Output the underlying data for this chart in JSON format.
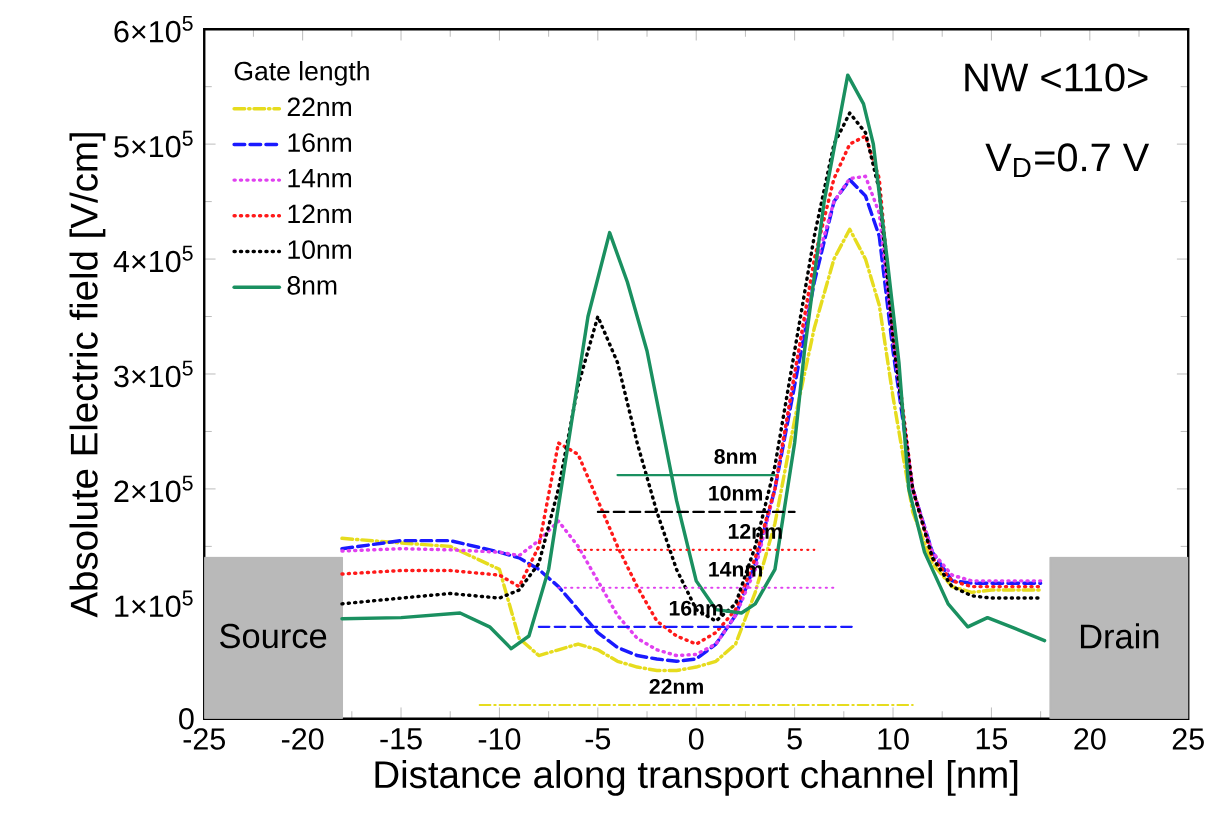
{
  "chart_data": {
    "type": "line",
    "xlabel": "Distance along transport channel [nm]",
    "ylabel": "Absolute Electric field [V/cm]",
    "legend_title": "Gate length",
    "legend": "top left",
    "grid": false,
    "marker": "none",
    "xlim": [
      -25,
      25
    ],
    "xticks": [
      -25,
      -20,
      -15,
      -10,
      -5,
      0,
      5,
      10,
      15,
      20,
      25
    ],
    "ylim": [
      0,
      600000
    ],
    "yticks": [
      0,
      {
        "value": 100000,
        "label": "1×10$^{5}$"
      },
      {
        "value": 200000,
        "label": "2×10$^{5}$"
      },
      {
        "value": 300000,
        "label": "3×10$^{5}$"
      },
      {
        "value": 400000,
        "label": "4×10$^{5}$"
      },
      {
        "value": 500000,
        "label": "5×10$^{5}$"
      },
      {
        "value": 600000,
        "label": "6×10$^{5}$"
      }
    ],
    "annotations": [
      "NW <110>",
      "V$_{D}$=0.7 V",
      "Source",
      "Drain",
      {
        "text": "8nm",
        "x": 2,
        "y": 212000
      },
      {
        "text": "10nm",
        "x": 2,
        "y": 180000
      },
      {
        "text": "12nm",
        "x": 3,
        "y": 147000
      },
      {
        "text": "14nm",
        "x": 2,
        "y": 114000
      },
      {
        "text": "16nm",
        "x": 0,
        "y": 80000
      },
      {
        "text": "22nm",
        "x": -1,
        "y": 12000
      }
    ],
    "series": [
      {
        "name": "22nm",
        "color": "#e6dc1e",
        "line_style": "dashdot",
        "x": [
          -18,
          -15,
          -12.5,
          -10,
          -9,
          -8,
          -7,
          -6,
          -5,
          -4,
          -3,
          -2,
          -1,
          0,
          1,
          2,
          3,
          4,
          5,
          6,
          7,
          7.8,
          8.6,
          9.3,
          10,
          11,
          12,
          13,
          14,
          15,
          17.5
        ],
        "values": [
          157000,
          153000,
          150000,
          130000,
          70000,
          55000,
          60000,
          65000,
          60000,
          50000,
          45000,
          42000,
          42000,
          45000,
          50000,
          65000,
          110000,
          170000,
          260000,
          340000,
          400000,
          426000,
          400000,
          360000,
          280000,
          180000,
          135000,
          115000,
          110000,
          112000,
          112000
        ]
      },
      {
        "name": "16nm",
        "color": "#1a1aff",
        "line_style": "dashed",
        "x": [
          -18,
          -15,
          -12.5,
          -10,
          -9,
          -8,
          -7,
          -6,
          -5,
          -4,
          -3,
          -2,
          -1,
          0,
          1,
          2,
          3,
          4,
          5,
          6,
          7,
          7.8,
          8.6,
          9.3,
          10,
          11,
          12,
          13,
          14,
          15,
          17.5
        ],
        "values": [
          148000,
          155000,
          155000,
          145000,
          140000,
          130000,
          115000,
          95000,
          75000,
          62000,
          55000,
          52000,
          50000,
          52000,
          65000,
          90000,
          135000,
          200000,
          290000,
          380000,
          450000,
          469000,
          455000,
          420000,
          320000,
          200000,
          145000,
          120000,
          118000,
          118000,
          118000
        ]
      },
      {
        "name": "14nm",
        "color": "#e040f0",
        "line_style": "dotted",
        "x": [
          -18,
          -15,
          -12.5,
          -10,
          -9,
          -8,
          -7,
          -6,
          -5,
          -4,
          -3,
          -2,
          -1,
          0,
          1,
          2,
          3,
          4,
          5,
          6,
          7,
          7.8,
          8.6,
          9.3,
          10,
          11,
          12,
          13,
          14,
          15,
          17.5
        ],
        "values": [
          146000,
          148000,
          147000,
          145000,
          142000,
          155000,
          172000,
          150000,
          120000,
          90000,
          70000,
          60000,
          55000,
          56000,
          65000,
          90000,
          130000,
          200000,
          300000,
          390000,
          450000,
          470000,
          472000,
          440000,
          330000,
          200000,
          145000,
          125000,
          120000,
          120000,
          120000
        ]
      },
      {
        "name": "12nm",
        "color": "#ff1a1a",
        "line_style": "dotted",
        "x": [
          -18,
          -15,
          -12.5,
          -10,
          -9,
          -8,
          -7,
          -6,
          -5,
          -4,
          -3,
          -2,
          -1,
          0,
          1,
          2,
          3,
          4,
          5,
          6,
          7,
          7.8,
          8.6,
          9.3,
          10,
          11,
          12,
          13,
          14,
          15,
          17.5
        ],
        "values": [
          126000,
          129000,
          129000,
          125000,
          115000,
          150000,
          240000,
          230000,
          190000,
          150000,
          115000,
          85000,
          72000,
          65000,
          75000,
          95000,
          140000,
          200000,
          300000,
          400000,
          470000,
          500000,
          507000,
          470000,
          340000,
          200000,
          140000,
          120000,
          115000,
          115000,
          115000
        ]
      },
      {
        "name": "10nm",
        "color": "#000000",
        "line_style": "dotted",
        "x": [
          -18,
          -15,
          -12.5,
          -10,
          -9,
          -8,
          -7,
          -6,
          -5,
          -4,
          -3,
          -2,
          -1,
          0,
          1,
          2,
          3,
          4,
          5,
          6,
          7,
          7.8,
          8.6,
          9.3,
          10,
          11,
          12,
          13,
          14,
          15,
          17.5
        ],
        "values": [
          100000,
          105000,
          109000,
          105000,
          112000,
          135000,
          200000,
          290000,
          350000,
          310000,
          240000,
          180000,
          130000,
          95000,
          85000,
          100000,
          150000,
          220000,
          320000,
          420000,
          500000,
          527000,
          510000,
          460000,
          330000,
          200000,
          140000,
          115000,
          107000,
          105000,
          105000
        ]
      },
      {
        "name": "8nm",
        "color": "#1a9060",
        "line_style": "solid",
        "x": [
          -18,
          -15,
          -12,
          -10.5,
          -9.4,
          -8.5,
          -7.5,
          -6.5,
          -5.5,
          -4.4,
          -3.5,
          -2.5,
          -1,
          0,
          1,
          2.3,
          3,
          4,
          5,
          5.5,
          6.5,
          7.7,
          8.5,
          9,
          9.7,
          10.3,
          10.8,
          11.6,
          12.8,
          13.8,
          14.8,
          16,
          17.7
        ],
        "values": [
          87000,
          88000,
          92000,
          80000,
          61000,
          72000,
          130000,
          240000,
          350000,
          423000,
          380000,
          320000,
          190000,
          120000,
          95000,
          92000,
          100000,
          130000,
          240000,
          320000,
          450000,
          560000,
          535000,
          500000,
          400000,
          310000,
          200000,
          145000,
          100000,
          80000,
          88000,
          80000,
          68000
        ]
      },
      {
        "type": "area",
        "color": "#b9b9b9",
        "x": [
          -25,
          -18
        ],
        "values": [
          140000,
          140000
        ]
      },
      {
        "type": "area",
        "color": "#b9b9b9",
        "x": [
          18,
          25
        ],
        "values": [
          140000,
          140000
        ]
      },
      {
        "color": "#1a9060",
        "line_style": "solid",
        "x": [
          -4,
          4
        ],
        "values": [
          212000,
          212000
        ]
      },
      {
        "color": "#000000",
        "line_style": "dashed",
        "x": [
          -5,
          5
        ],
        "values": [
          180000,
          180000
        ]
      },
      {
        "color": "#ff1a1a",
        "line_style": "dotted",
        "x": [
          -6,
          6
        ],
        "values": [
          147000,
          147000
        ]
      },
      {
        "color": "#e040f0",
        "line_style": "dotted",
        "x": [
          -7,
          7
        ],
        "values": [
          114000,
          114000
        ]
      },
      {
        "color": "#1a1aff",
        "line_style": "dashed",
        "x": [
          -8,
          8
        ],
        "values": [
          80000,
          80000
        ]
      },
      {
        "color": "#e6dc1e",
        "line_style": "dashdot",
        "x": [
          -11,
          11
        ],
        "values": [
          12000,
          12000
        ]
      }
    ]
  }
}
